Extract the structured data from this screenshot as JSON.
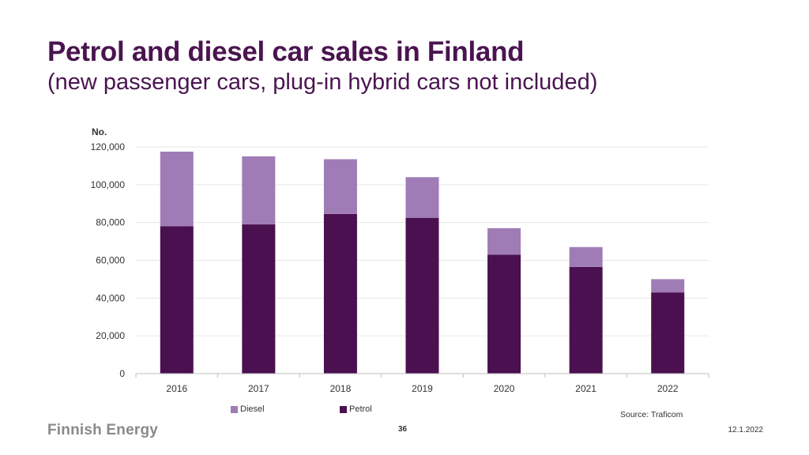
{
  "header": {
    "title": "Petrol and diesel car sales in Finland",
    "subtitle": "(new passenger cars, plug-in hybrid cars not included)"
  },
  "chart_data": {
    "type": "bar",
    "stacked": true,
    "categories": [
      "2016",
      "2017",
      "2018",
      "2019",
      "2020",
      "2021",
      "2022"
    ],
    "series": [
      {
        "name": "Petrol",
        "color": "#4a1050",
        "values": [
          78000,
          79000,
          84500,
          82500,
          63000,
          56500,
          43000
        ]
      },
      {
        "name": "Diesel",
        "color": "#a07cb6",
        "values": [
          39500,
          36000,
          29000,
          21500,
          14000,
          10500,
          7000
        ]
      }
    ],
    "ylabel": "No.",
    "ylim": [
      0,
      120000
    ],
    "yticks": [
      "0",
      "20,000",
      "40,000",
      "60,000",
      "80,000",
      "100,000",
      "120,000"
    ],
    "grid": true,
    "legend_position": "bottom"
  },
  "legend": {
    "items": [
      {
        "label": "Diesel",
        "color": "#a07cb6"
      },
      {
        "label": "Petrol",
        "color": "#4a1050"
      }
    ]
  },
  "footer": {
    "source": "Source: Traficom",
    "logo_text": "Finnish Energy",
    "page_number": "36",
    "date": "12.1.2022"
  }
}
